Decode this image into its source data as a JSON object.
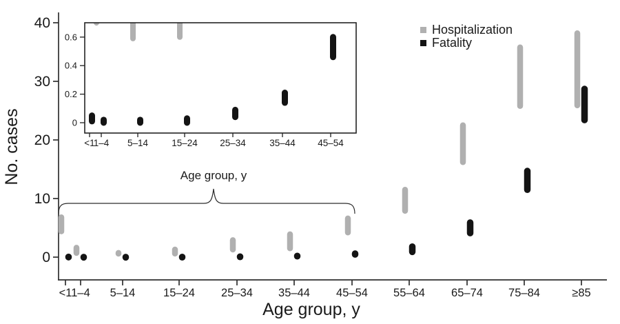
{
  "figure": {
    "ylabel": "No. cases",
    "xlabel": "Age group, y",
    "brace_annotation": "Age group, y"
  },
  "legend": {
    "items": [
      {
        "label": "Hospitalization",
        "color": "#b0b0b0"
      },
      {
        "label": "Fatality",
        "color": "#141414"
      }
    ]
  },
  "chart_data": {
    "type": "range-bar",
    "title": "",
    "xlabel": "Age group, y",
    "ylabel": "No. cases",
    "ylim": [
      0,
      40
    ],
    "yticks": [
      0,
      10,
      20,
      30,
      40
    ],
    "grid": false,
    "legend_position": "top-right",
    "categories": [
      "<1",
      "1–4",
      "5–14",
      "15–24",
      "25–34",
      "35–44",
      "45–54",
      "55–64",
      "65–74",
      "75–84",
      "≥85"
    ],
    "series": [
      {
        "name": "Hospitalization",
        "color": "#b0b0b0",
        "ranges": [
          [
            4.4,
            6.8
          ],
          [
            0.7,
            1.6
          ],
          [
            0.59,
            0.72
          ],
          [
            0.6,
            1.3
          ],
          [
            1.3,
            2.9
          ],
          [
            1.5,
            3.9
          ],
          [
            4.2,
            6.6
          ],
          [
            7.9,
            11.5
          ],
          [
            16.2,
            22.5
          ],
          [
            25.8,
            35.8
          ],
          [
            25.9,
            38.2
          ]
        ]
      },
      {
        "name": "Fatality",
        "color": "#141414",
        "ranges": [
          [
            0.01,
            0.05
          ],
          [
            0.0,
            0.02
          ],
          [
            0.0,
            0.02
          ],
          [
            0.0,
            0.03
          ],
          [
            0.04,
            0.09
          ],
          [
            0.14,
            0.21
          ],
          [
            0.46,
            0.6
          ],
          [
            0.9,
            1.8
          ],
          [
            4.1,
            5.9
          ],
          [
            11.5,
            14.7
          ],
          [
            23.4,
            28.7
          ]
        ]
      }
    ],
    "inset": {
      "description": "Magnified view of low-value age groups; same data as main chart",
      "ylim": [
        0,
        0.7
      ],
      "yticks": [
        0,
        0.2,
        0.4,
        0.6
      ],
      "categories": [
        "<1",
        "1–4",
        "5–14",
        "15–24",
        "25–34",
        "35–44",
        "45–54"
      ],
      "xlabel": "Age group, y",
      "clip_note": "Hospitalization range for 5–14 is clipped at the top of the inset"
    }
  }
}
